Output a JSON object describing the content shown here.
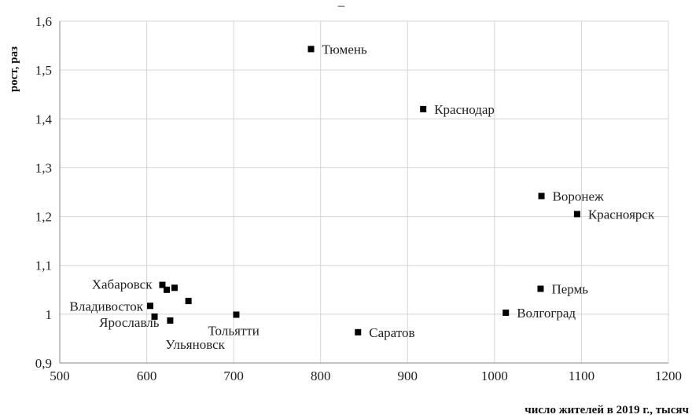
{
  "chart_data": {
    "type": "scatter",
    "title": "–",
    "xlabel": "число жителей в 2019 г., тысяч",
    "ylabel": "рост, раз",
    "xlim": [
      500,
      1200
    ],
    "ylim": [
      0.9,
      1.6
    ],
    "x_ticks": [
      500,
      600,
      700,
      800,
      900,
      1000,
      1100,
      1200
    ],
    "x_tick_labels": [
      "500",
      "600",
      "700",
      "800",
      "900",
      "1000",
      "1100",
      "1200"
    ],
    "y_ticks": [
      0.9,
      1.0,
      1.1,
      1.2,
      1.3,
      1.4,
      1.5,
      1.6
    ],
    "y_tick_labels": [
      "0,9",
      "1",
      "1,1",
      "1,2",
      "1,3",
      "1,4",
      "1,5",
      "1,6"
    ],
    "grid": "vertical and horizontal",
    "points": [
      {
        "label": "Тюмень",
        "x": 789,
        "y": 1.543
      },
      {
        "label": "Краснодар",
        "x": 918,
        "y": 1.42
      },
      {
        "label": "Воронеж",
        "x": 1054,
        "y": 1.242
      },
      {
        "label": "Красноярск",
        "x": 1095,
        "y": 1.205
      },
      {
        "label": "Пермь",
        "x": 1053,
        "y": 1.052
      },
      {
        "label": "Волгоград",
        "x": 1013,
        "y": 1.003
      },
      {
        "label": "Саратов",
        "x": 843,
        "y": 0.963
      },
      {
        "label": "Тольятти",
        "x": 703,
        "y": 0.999
      },
      {
        "label": "Ульяновск",
        "x": 627,
        "y": 0.987
      },
      {
        "label": "Ярославль",
        "x": 609,
        "y": 0.995
      },
      {
        "label": "Владивосток",
        "x": 604,
        "y": 1.017
      },
      {
        "label": "Хабаровск",
        "x": 618,
        "y": 1.06
      },
      {
        "label": "",
        "x": 623,
        "y": 1.05
      },
      {
        "label": "",
        "x": 632,
        "y": 1.054
      },
      {
        "label": "",
        "x": 648,
        "y": 1.027
      }
    ]
  }
}
